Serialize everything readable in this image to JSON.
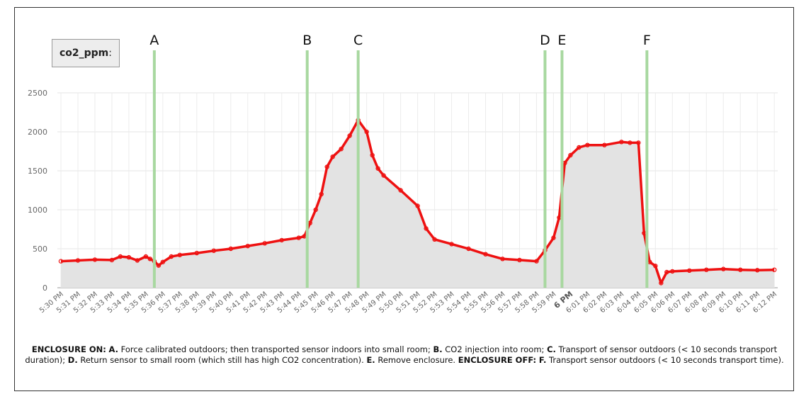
{
  "legend": {
    "name": "co2_ppm",
    "suffix": ":"
  },
  "chart_data": {
    "type": "area",
    "ylim": [
      0,
      2500
    ],
    "y_ticks": [
      0,
      500,
      1000,
      1500,
      2000,
      2500
    ],
    "x_ticks": [
      "5:30 PM",
      "5:31 PM",
      "5:32 PM",
      "5:33 PM",
      "5:34 PM",
      "5:35 PM",
      "5:36 PM",
      "5:37 PM",
      "5:38 PM",
      "5:39 PM",
      "5:40 PM",
      "5:41 PM",
      "5:42 PM",
      "5:43 PM",
      "5:44 PM",
      "5:45 PM",
      "5:46 PM",
      "5:47 PM",
      "5:48 PM",
      "5:49 PM",
      "5:50 PM",
      "5:51 PM",
      "5:52 PM",
      "5:53 PM",
      "5:54 PM",
      "5:55 PM",
      "5:56 PM",
      "5:57 PM",
      "5:58 PM",
      "5:59 PM",
      "6 PM",
      "6:01 PM",
      "6:02 PM",
      "6:03 PM",
      "6:04 PM",
      "6:05 PM",
      "6:06 PM",
      "6:07 PM",
      "6:08 PM",
      "6:09 PM",
      "6:10 PM",
      "6:11 PM",
      "6:12 PM"
    ],
    "bold_ticks": [
      "6 PM"
    ],
    "grid": true,
    "series": [
      {
        "name": "co2_ppm",
        "color": "#ee1111",
        "fill": "#e3e3e3",
        "points": [
          [
            "5:30 PM",
            340
          ],
          [
            "5:31 PM",
            350
          ],
          [
            "5:32 PM",
            360
          ],
          [
            "5:33 PM",
            355
          ],
          [
            "5:33 PM",
            400
          ],
          [
            "5:34 PM",
            390
          ],
          [
            "5:34 PM",
            350
          ],
          [
            "5:35 PM",
            400
          ],
          [
            "5:35 PM",
            370
          ],
          [
            "5:35 PM",
            340
          ],
          [
            "5:35 PM",
            285
          ],
          [
            "5:36 PM",
            330
          ],
          [
            "5:36 PM",
            400
          ],
          [
            "5:37 PM",
            420
          ],
          [
            "5:38 PM",
            445
          ],
          [
            "5:39 PM",
            475
          ],
          [
            "5:40 PM",
            500
          ],
          [
            "5:41 PM",
            535
          ],
          [
            "5:42 PM",
            570
          ],
          [
            "5:43 PM",
            610
          ],
          [
            "5:44 PM",
            640
          ],
          [
            "5:44 PM",
            660
          ],
          [
            "5:44 PM",
            830
          ],
          [
            "5:45 PM",
            1000
          ],
          [
            "5:45 PM",
            1200
          ],
          [
            "5:45 PM",
            1550
          ],
          [
            "5:46 PM",
            1680
          ],
          [
            "5:46 PM",
            1780
          ],
          [
            "5:47 PM",
            1950
          ],
          [
            "5:47 PM",
            2150
          ],
          [
            "5:48 PM",
            2000
          ],
          [
            "5:48 PM",
            1700
          ],
          [
            "5:48 PM",
            1530
          ],
          [
            "5:49 PM",
            1440
          ],
          [
            "5:50 PM",
            1250
          ],
          [
            "5:51 PM",
            1050
          ],
          [
            "5:51 PM",
            760
          ],
          [
            "5:52 PM",
            620
          ],
          [
            "5:53 PM",
            560
          ],
          [
            "5:54 PM",
            500
          ],
          [
            "5:55 PM",
            430
          ],
          [
            "5:56 PM",
            370
          ],
          [
            "5:57 PM",
            355
          ],
          [
            "5:58 PM",
            340
          ],
          [
            "5:58 PM",
            480
          ],
          [
            "5:59 PM",
            640
          ],
          [
            "5:59 PM",
            900
          ],
          [
            "5:59 PM",
            1600
          ],
          [
            "6 PM",
            1700
          ],
          [
            "6 PM",
            1800
          ],
          [
            "6:01 PM",
            1830
          ],
          [
            "6:02 PM",
            1830
          ],
          [
            "6:03 PM",
            1870
          ],
          [
            "6:03 PM",
            1860
          ],
          [
            "6:04 PM",
            1860
          ],
          [
            "6:04 PM",
            700
          ],
          [
            "6:04 PM",
            330
          ],
          [
            "6:05 PM",
            280
          ],
          [
            "6:05 PM",
            60
          ],
          [
            "6:05 PM",
            200
          ],
          [
            "6:06 PM",
            210
          ],
          [
            "6:07 PM",
            220
          ],
          [
            "6:08 PM",
            230
          ],
          [
            "6:09 PM",
            240
          ],
          [
            "6:10 PM",
            230
          ],
          [
            "6:11 PM",
            225
          ],
          [
            "6:12 PM",
            230
          ]
        ]
      }
    ],
    "markers": [
      {
        "label": "A",
        "time": "5:35 PM"
      },
      {
        "label": "B",
        "time": "5:44 PM"
      },
      {
        "label": "C",
        "time": "5:47 PM"
      },
      {
        "label": "D",
        "time": "5:58 PM"
      },
      {
        "label": "E",
        "time": "5:59 PM"
      },
      {
        "label": "F",
        "time": "6:04 PM"
      }
    ],
    "marker_color": "#a8d8a0"
  },
  "caption": {
    "on_label": "ENCLOSURE ON:",
    "a_key": "A.",
    "a_text": " Force calibrated outdoors; then transported sensor indoors into small room; ",
    "b_key": "B.",
    "b_text": " CO2 injection into room; ",
    "c_key": "C.",
    "c_text": " Transport of sensor outdoors (< 10 seconds transport duration); ",
    "d_key": "D.",
    "d_text": " Return sensor to small room (which still has high CO2 concentration). ",
    "e_key": "E.",
    "e_text": " Remove enclosure. ",
    "off_label": "ENCLOSURE OFF:",
    "f_key": "F.",
    "f_text": " Transport sensor outdoors (< 10 seconds transport time)."
  }
}
